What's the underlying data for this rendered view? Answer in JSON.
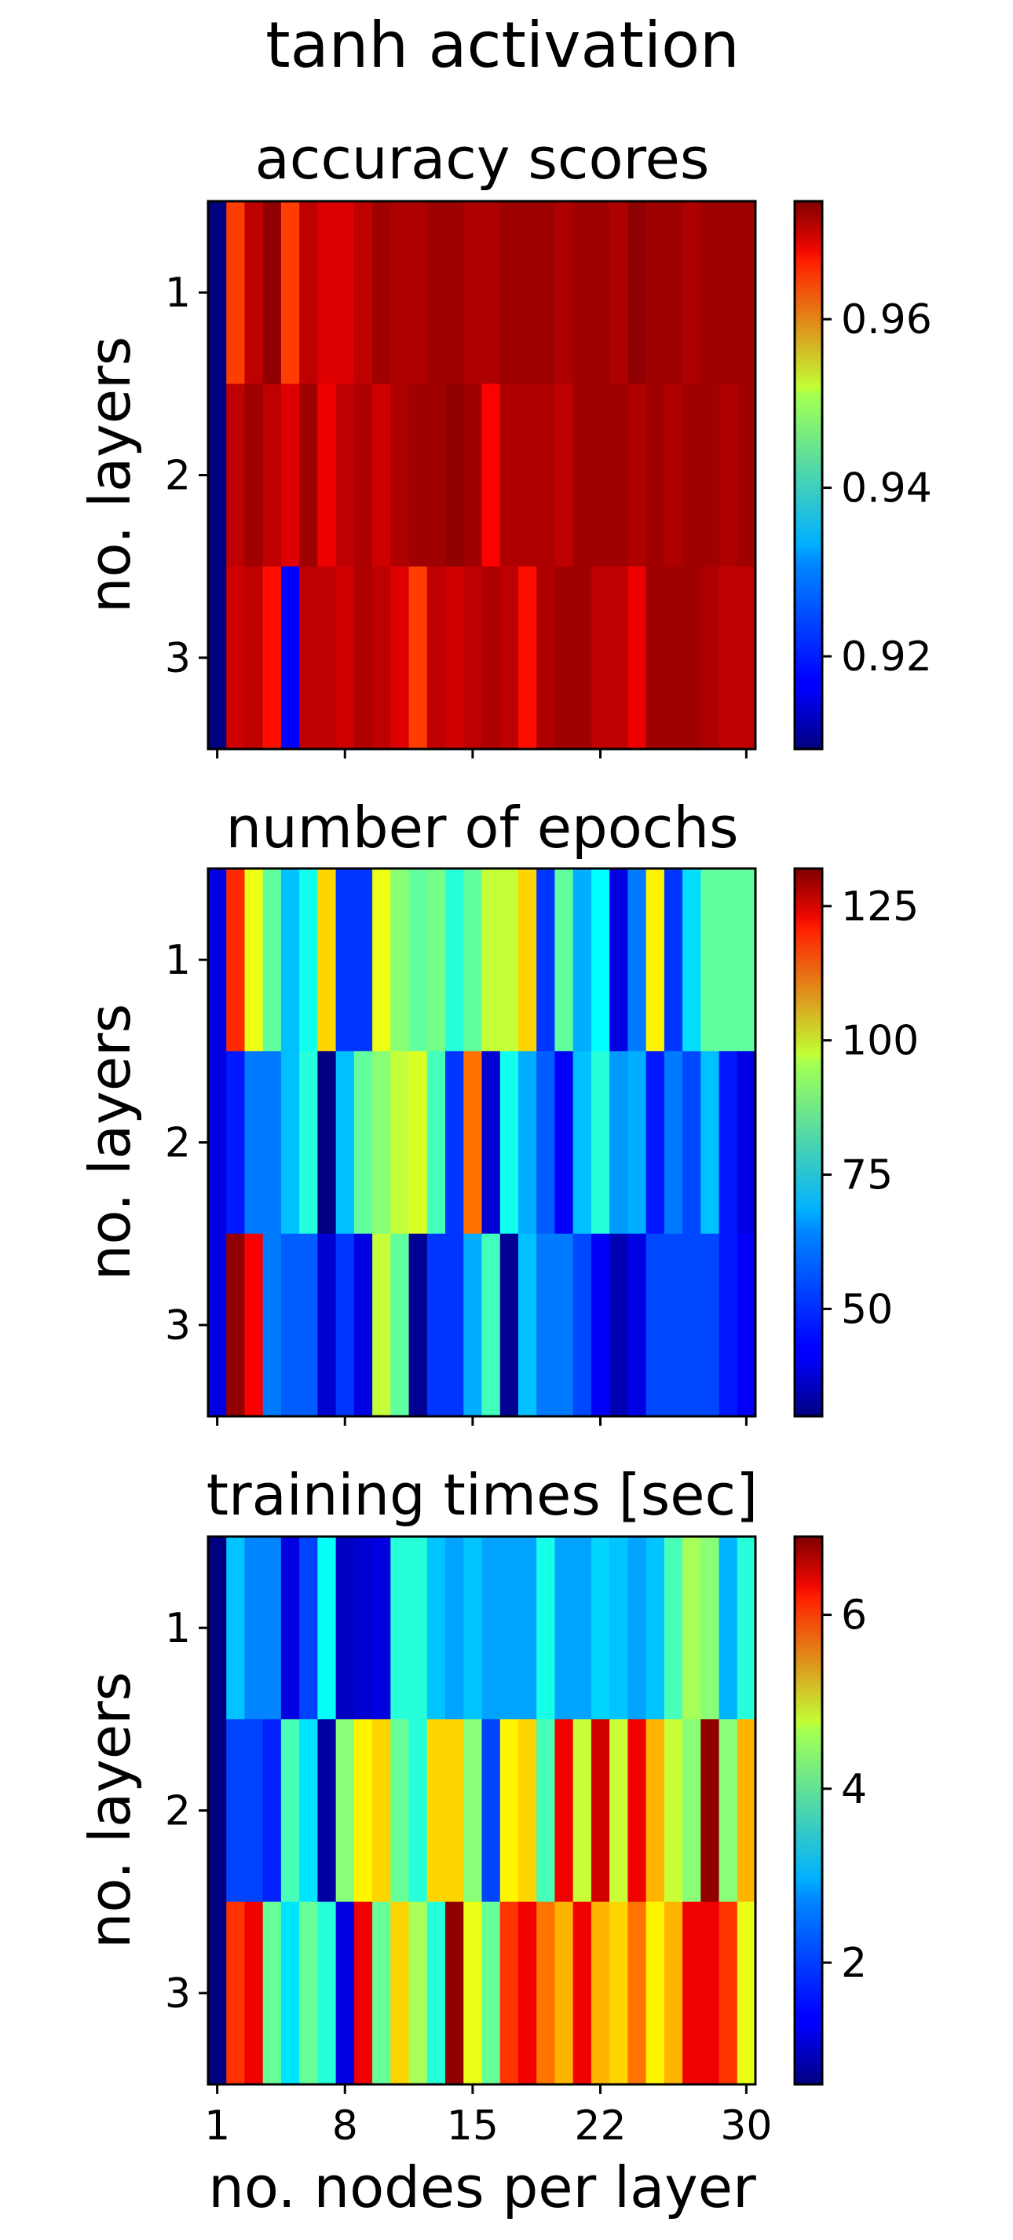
{
  "chart_data": {
    "type": "heatmap",
    "suptitle": "tanh activation",
    "x_values": [
      1,
      2,
      3,
      4,
      5,
      6,
      7,
      8,
      9,
      10,
      11,
      12,
      13,
      14,
      15,
      16,
      17,
      18,
      19,
      20,
      21,
      22,
      23,
      24,
      25,
      26,
      27,
      28,
      29,
      30
    ],
    "y_values": [
      1,
      2,
      3
    ],
    "xticks": [
      "1",
      "8",
      "15",
      "22",
      "30"
    ],
    "yticks": [
      "1",
      "2",
      "3"
    ],
    "xlabel": "no. nodes per layer",
    "ylabel": "no. layers",
    "colormap": "jet",
    "panels": [
      {
        "title": "accuracy scores",
        "vmin": 0.909,
        "vmax": 0.974,
        "cbar_ticks": [
          "0.92",
          "0.94",
          "0.96"
        ],
        "cbar_tick_values": [
          0.92,
          0.94,
          0.96
        ],
        "values": [
          [
            0.909,
            0.962,
            0.97,
            0.973,
            0.962,
            0.97,
            0.968,
            0.968,
            0.97,
            0.972,
            0.971,
            0.971,
            0.972,
            0.972,
            0.971,
            0.971,
            0.972,
            0.972,
            0.972,
            0.971,
            0.972,
            0.972,
            0.971,
            0.973,
            0.972,
            0.972,
            0.971,
            0.972,
            0.972,
            0.972
          ],
          [
            0.909,
            0.97,
            0.972,
            0.97,
            0.968,
            0.972,
            0.967,
            0.97,
            0.971,
            0.969,
            0.971,
            0.972,
            0.972,
            0.973,
            0.972,
            0.966,
            0.971,
            0.971,
            0.971,
            0.97,
            0.972,
            0.972,
            0.972,
            0.971,
            0.972,
            0.971,
            0.972,
            0.972,
            0.971,
            0.972
          ],
          [
            0.909,
            0.969,
            0.97,
            0.965,
            0.917,
            0.97,
            0.97,
            0.969,
            0.971,
            0.97,
            0.968,
            0.962,
            0.97,
            0.969,
            0.97,
            0.971,
            0.97,
            0.965,
            0.971,
            0.972,
            0.972,
            0.97,
            0.97,
            0.967,
            0.972,
            0.972,
            0.972,
            0.971,
            0.97,
            0.97
          ]
        ]
      },
      {
        "title": "number of epochs",
        "vmin": 30,
        "vmax": 132,
        "cbar_ticks": [
          "50",
          "75",
          "100",
          "125"
        ],
        "cbar_tick_values": [
          50,
          75,
          100,
          125
        ],
        "values": [
          [
            40,
            115,
            92,
            78,
            62,
            70,
            98,
            48,
            48,
            92,
            82,
            78,
            80,
            72,
            78,
            88,
            88,
            98,
            48,
            78,
            60,
            68,
            40,
            55,
            95,
            48,
            65,
            78,
            78,
            78
          ],
          [
            40,
            45,
            55,
            55,
            62,
            72,
            30,
            62,
            78,
            82,
            88,
            90,
            75,
            48,
            108,
            38,
            70,
            60,
            52,
            42,
            62,
            72,
            58,
            60,
            45,
            55,
            50,
            62,
            45,
            40
          ],
          [
            40,
            130,
            120,
            55,
            52,
            52,
            38,
            48,
            40,
            88,
            78,
            32,
            48,
            48,
            60,
            75,
            32,
            62,
            55,
            55,
            50,
            42,
            35,
            40,
            50,
            50,
            50,
            50,
            45,
            42
          ]
        ]
      },
      {
        "title": "training times [sec]",
        "vmin": 0.6,
        "vmax": 6.9,
        "cbar_ticks": [
          "2",
          "4",
          "6"
        ],
        "cbar_tick_values": [
          2,
          4,
          6
        ],
        "values": [
          [
            0.6,
            2.6,
            2.2,
            2.2,
            1.2,
            1.8,
            3.0,
            1.0,
            1.1,
            1.2,
            3.2,
            3.2,
            2.6,
            2.4,
            2.6,
            2.4,
            2.4,
            2.4,
            3.1,
            2.4,
            2.4,
            2.7,
            2.6,
            2.4,
            2.6,
            3.4,
            4.0,
            3.8,
            2.5,
            3.2
          ],
          [
            0.6,
            1.8,
            1.8,
            1.6,
            3.4,
            2.8,
            0.8,
            3.8,
            4.6,
            4.8,
            3.6,
            3.2,
            4.8,
            4.8,
            3.8,
            1.8,
            4.6,
            4.8,
            3.4,
            6.2,
            4.2,
            6.4,
            4.2,
            6.2,
            5.0,
            4.2,
            3.8,
            6.8,
            3.8,
            5.0
          ],
          [
            0.6,
            5.8,
            6.2,
            3.6,
            2.8,
            3.6,
            3.2,
            1.2,
            6.2,
            3.6,
            4.8,
            4.0,
            3.2,
            6.8,
            4.4,
            3.6,
            5.8,
            6.2,
            5.4,
            5.0,
            6.2,
            5.0,
            4.8,
            5.4,
            4.6,
            5.0,
            6.2,
            6.2,
            5.8,
            4.4
          ]
        ]
      }
    ]
  }
}
